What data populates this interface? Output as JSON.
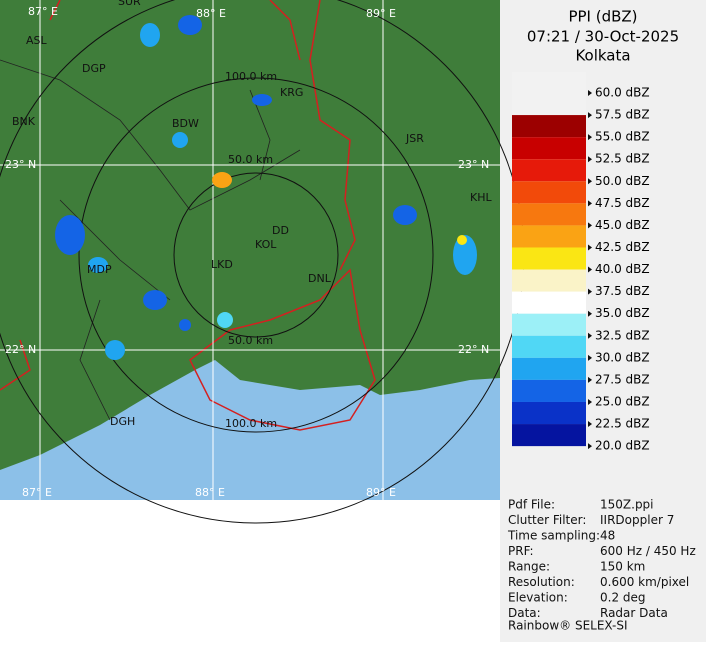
{
  "header": {
    "product": "PPI (dBZ)",
    "datetime": "07:21 / 30-Oct-2025",
    "station": "Kolkata"
  },
  "legend": [
    {
      "label": "60.0 dBZ",
      "color": "#f2f2f2"
    },
    {
      "label": "57.5 dBZ",
      "color": "#9c0000"
    },
    {
      "label": "55.0 dBZ",
      "color": "#c80000"
    },
    {
      "label": "52.5 dBZ",
      "color": "#e61a0a"
    },
    {
      "label": "50.0 dBZ",
      "color": "#f24a0a"
    },
    {
      "label": "47.5 dBZ",
      "color": "#f7780f"
    },
    {
      "label": "45.0 dBZ",
      "color": "#faa314"
    },
    {
      "label": "42.5 dBZ",
      "color": "#fae614"
    },
    {
      "label": "40.0 dBZ",
      "color": "#faf3c8"
    },
    {
      "label": "37.5 dBZ",
      "color": "#ffffff"
    },
    {
      "label": "35.0 dBZ",
      "color": "#9cf0f7"
    },
    {
      "label": "32.5 dBZ",
      "color": "#50d7f5"
    },
    {
      "label": "30.0 dBZ",
      "color": "#20a5f0"
    },
    {
      "label": "27.5 dBZ",
      "color": "#1464e6"
    },
    {
      "label": "25.0 dBZ",
      "color": "#0a32c8"
    },
    {
      "label": "22.5 dBZ",
      "color": "#0514a0"
    },
    {
      "label": "20.0 dBZ"
    }
  ],
  "map": {
    "grid_labels": [
      "87° E",
      "88° E",
      "89° E",
      "23° N",
      "22° N"
    ],
    "range_labels": [
      "100.0 km",
      "50.0 km"
    ],
    "cities": [
      "SUR",
      "ASL",
      "DGP",
      "BNK",
      "BDW",
      "KRG",
      "JSR",
      "KHL",
      "DD",
      "KOL",
      "LKD",
      "MDP",
      "DNL",
      "DGH"
    ]
  },
  "info": [
    [
      "Pdf File:",
      "150Z.ppi"
    ],
    [
      "Clutter Filter:",
      "IIRDoppler 7"
    ],
    [
      "Time sampling:",
      "48"
    ],
    [
      "PRF:",
      "600 Hz / 450 Hz"
    ],
    [
      "Range:",
      "150 km"
    ],
    [
      "Resolution:",
      "0.600 km/pixel"
    ],
    [
      "Elevation:",
      "0.2 deg"
    ],
    [
      "Data:",
      "Radar Data"
    ]
  ],
  "footer": "Rainbow® SELEX-SI"
}
